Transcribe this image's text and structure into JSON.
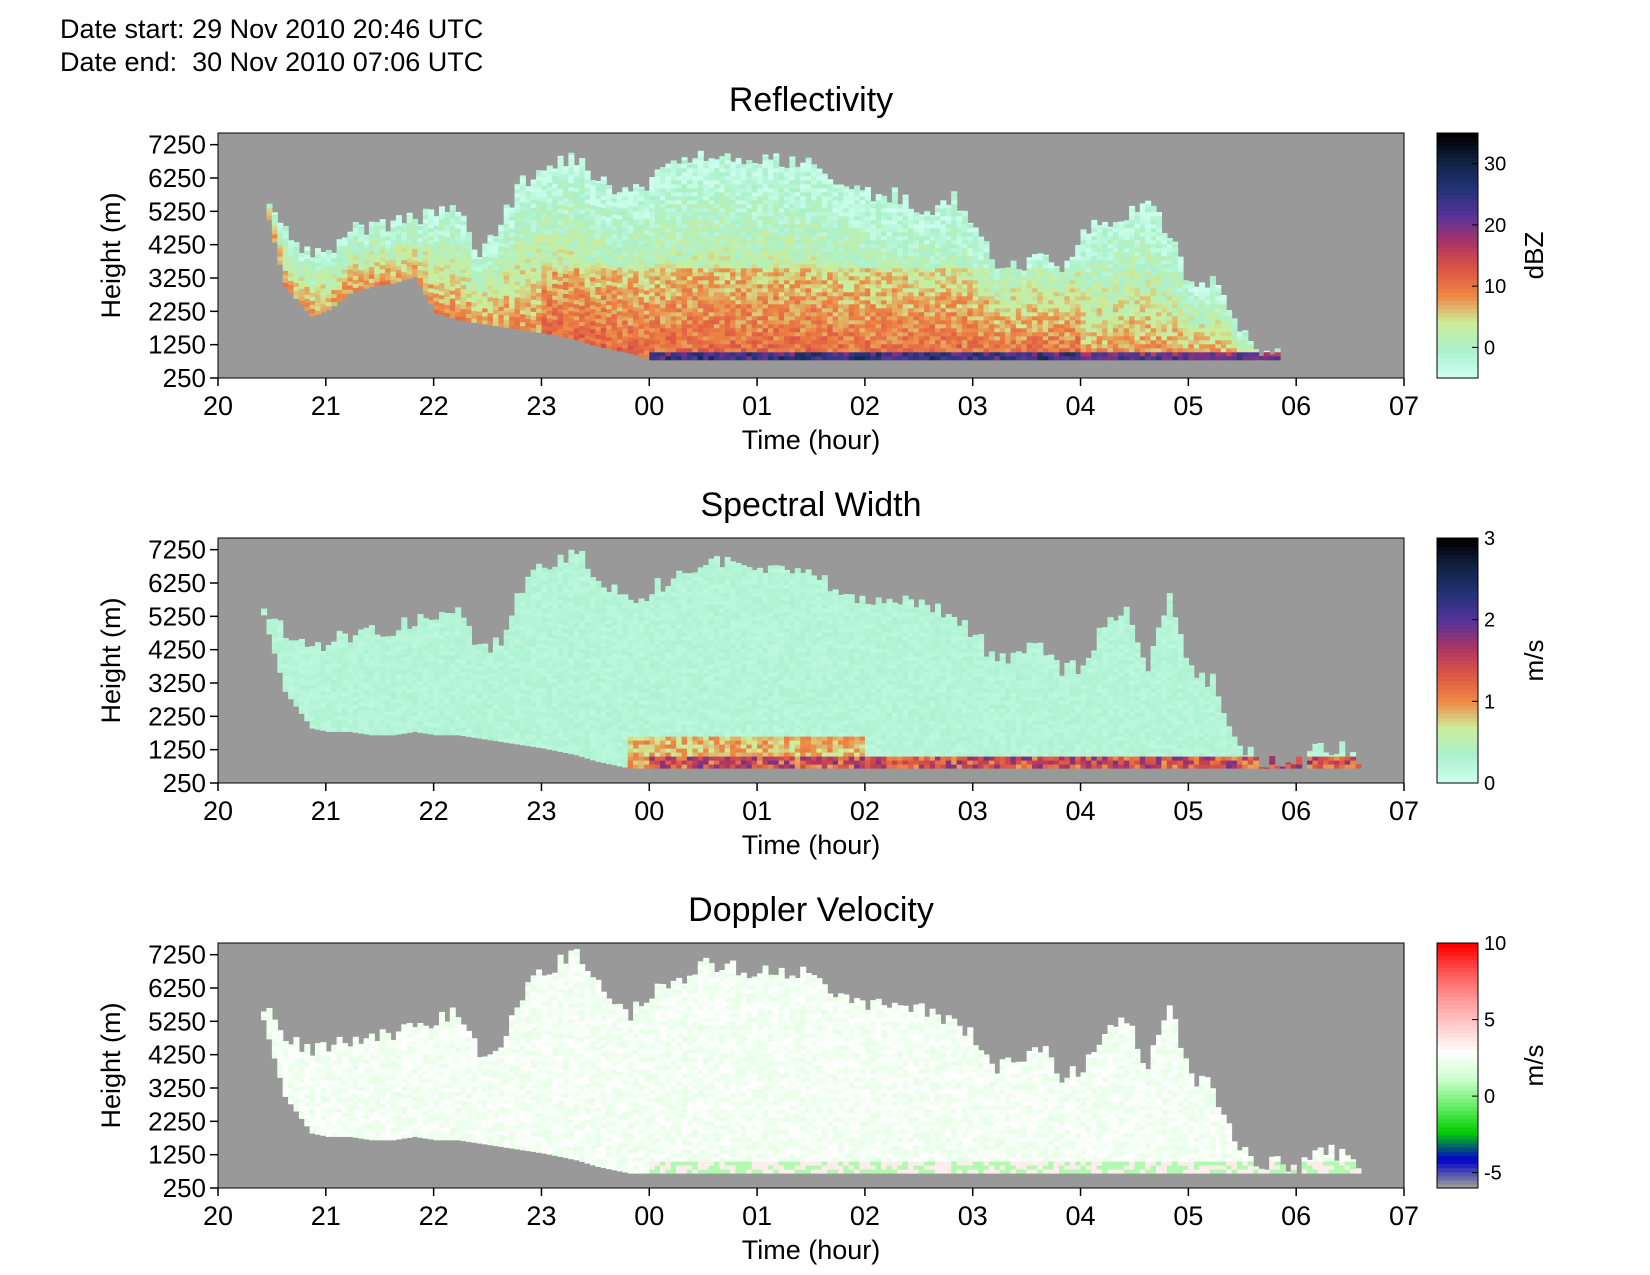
{
  "header": {
    "date_start": "Date start: 29 Nov 2010 20:46 UTC",
    "date_end": "Date end:  30 Nov 2010 07:06 UTC"
  },
  "colors": {
    "no_data": "#999999",
    "gray_background": "#999999"
  },
  "chart_data": [
    {
      "type": "heatmap",
      "title": "Reflectivity",
      "xlabel": "Time (hour)",
      "ylabel": "Height (m)",
      "x_ticks": [
        "20",
        "21",
        "22",
        "23",
        "00",
        "01",
        "02",
        "03",
        "04",
        "05",
        "06",
        "07"
      ],
      "y_ticks": [
        250,
        1250,
        2250,
        3250,
        4250,
        5250,
        6250,
        7250
      ],
      "xlim": [
        20,
        31
      ],
      "ylim": [
        250,
        7600
      ],
      "colorbar": {
        "label": "dBZ",
        "ticks": [
          0,
          10,
          20,
          30
        ],
        "range": [
          -5,
          35
        ],
        "colors": [
          "#ccffee",
          "#aaf0cc",
          "#ccee99",
          "#ee8844",
          "#dd5544",
          "#aa3366",
          "#553399",
          "#223377",
          "#112244",
          "#000000"
        ]
      },
      "cloud_extent": {
        "times": [
          20.45,
          20.6,
          20.85,
          21.0,
          21.2,
          21.4,
          21.6,
          21.8,
          22.0,
          22.2,
          22.4,
          22.6,
          22.8,
          23.0,
          23.3,
          23.5,
          23.8,
          24.0,
          24.3,
          24.5,
          24.8,
          25.0,
          25.3,
          25.5,
          25.7,
          26.0,
          26.3,
          26.6,
          26.8,
          27.0,
          27.2,
          27.4,
          27.6,
          27.8,
          28.0,
          28.2,
          28.4,
          28.6,
          28.8,
          29.0,
          29.2,
          29.4,
          29.6,
          29.8,
          30.0
        ],
        "top": [
          5400,
          4600,
          4000,
          3900,
          4700,
          4800,
          4900,
          5000,
          5200,
          5400,
          4000,
          5000,
          6100,
          6700,
          6800,
          6200,
          5800,
          6200,
          6900,
          6900,
          6700,
          6800,
          6800,
          6600,
          6000,
          5800,
          5700,
          5200,
          5600,
          4700,
          3700,
          3600,
          4000,
          3400,
          4700,
          4800,
          5100,
          5500,
          4500,
          3000,
          3200,
          2000,
          1000,
          900,
          700
        ],
        "base": [
          5000,
          3000,
          2100,
          2300,
          2800,
          3000,
          3100,
          3300,
          2200,
          2000,
          1900,
          1800,
          1700,
          1600,
          1400,
          1200,
          1000,
          800,
          800,
          800,
          800,
          800,
          800,
          800,
          800,
          800,
          800,
          800,
          800,
          800,
          800,
          800,
          800,
          800,
          800,
          800,
          800,
          800,
          800,
          800,
          800,
          800,
          800,
          800,
          700
        ]
      }
    },
    {
      "type": "heatmap",
      "title": "Spectral Width",
      "xlabel": "Time (hour)",
      "ylabel": "Height (m)",
      "x_ticks": [
        "20",
        "21",
        "22",
        "23",
        "00",
        "01",
        "02",
        "03",
        "04",
        "05",
        "06",
        "07"
      ],
      "y_ticks": [
        250,
        1250,
        2250,
        3250,
        4250,
        5250,
        6250,
        7250
      ],
      "xlim": [
        20,
        31
      ],
      "ylim": [
        250,
        7600
      ],
      "colorbar": {
        "label": "m/s",
        "ticks": [
          0,
          1,
          2,
          3
        ],
        "range": [
          0,
          3
        ],
        "colors": [
          "#ccffee",
          "#aaf0cc",
          "#ccee99",
          "#ee8844",
          "#dd5544",
          "#aa3366",
          "#553399",
          "#223377",
          "#112244",
          "#000000"
        ]
      },
      "cloud_extent": {
        "times": [
          20.4,
          20.6,
          20.85,
          21.0,
          21.2,
          21.4,
          21.6,
          21.8,
          22.0,
          22.2,
          22.4,
          22.6,
          22.8,
          23.0,
          23.3,
          23.5,
          23.8,
          24.0,
          24.3,
          24.5,
          24.8,
          25.0,
          25.3,
          25.5,
          25.7,
          26.0,
          26.3,
          26.6,
          26.8,
          27.0,
          27.2,
          27.4,
          27.6,
          27.8,
          28.0,
          28.2,
          28.4,
          28.6,
          28.8,
          29.0,
          29.2,
          29.4,
          29.6,
          29.8,
          30.0,
          30.2,
          30.4,
          30.6
        ],
        "top": [
          5600,
          4800,
          4300,
          4500,
          4700,
          4800,
          4900,
          5100,
          5300,
          5600,
          4300,
          4500,
          6100,
          6800,
          7200,
          6500,
          5500,
          6100,
          6500,
          7000,
          6800,
          6700,
          6700,
          6600,
          6000,
          5800,
          5700,
          5600,
          5200,
          4700,
          3800,
          4200,
          4500,
          3600,
          3800,
          5000,
          5400,
          3800,
          5800,
          3600,
          3300,
          1700,
          900,
          1000,
          800,
          1300,
          1300,
          900
        ],
        "base": [
          5300,
          3000,
          1900,
          1800,
          1800,
          1700,
          1700,
          1800,
          1700,
          1700,
          1600,
          1500,
          1400,
          1300,
          1100,
          900,
          700,
          700,
          700,
          700,
          700,
          700,
          700,
          700,
          700,
          700,
          700,
          700,
          700,
          700,
          700,
          700,
          700,
          700,
          700,
          700,
          700,
          700,
          700,
          700,
          700,
          700,
          700,
          700,
          700,
          700,
          700,
          700
        ]
      }
    },
    {
      "type": "heatmap",
      "title": "Doppler Velocity",
      "xlabel": "Time (hour)",
      "ylabel": "Height (m)",
      "x_ticks": [
        "20",
        "21",
        "22",
        "23",
        "00",
        "01",
        "02",
        "03",
        "04",
        "05",
        "06",
        "07"
      ],
      "y_ticks": [
        250,
        1250,
        2250,
        3250,
        4250,
        5250,
        6250,
        7250
      ],
      "xlim": [
        20,
        31
      ],
      "ylim": [
        250,
        7600
      ],
      "colorbar": {
        "label": "m/s",
        "ticks": [
          -5,
          0,
          5,
          10
        ],
        "range": [
          -6,
          10
        ],
        "colors": [
          "#999999",
          "#0000cc",
          "#00cc00",
          "#66ee66",
          "#ccffcc",
          "#ffffff",
          "#ffcccc",
          "#ff9999",
          "#ff5555",
          "#ff0000"
        ]
      },
      "cloud_extent": {
        "times": [
          20.4,
          20.6,
          20.85,
          21.0,
          21.2,
          21.4,
          21.6,
          21.8,
          22.0,
          22.2,
          22.4,
          22.6,
          22.8,
          23.0,
          23.3,
          23.5,
          23.8,
          24.0,
          24.3,
          24.5,
          24.8,
          25.0,
          25.3,
          25.5,
          25.7,
          26.0,
          26.3,
          26.6,
          26.8,
          27.0,
          27.2,
          27.4,
          27.6,
          27.8,
          28.0,
          28.2,
          28.4,
          28.6,
          28.8,
          29.0,
          29.2,
          29.4,
          29.6,
          29.8,
          30.0,
          30.2,
          30.4,
          30.6
        ],
        "top": [
          5600,
          4800,
          4300,
          4500,
          4700,
          4800,
          4900,
          5100,
          5300,
          5600,
          4300,
          4500,
          6100,
          6800,
          7200,
          6500,
          5500,
          6100,
          6500,
          7000,
          6800,
          6700,
          6700,
          6600,
          6000,
          5800,
          5700,
          5600,
          5200,
          4700,
          3800,
          4200,
          4500,
          3600,
          3800,
          5000,
          5400,
          3800,
          5800,
          3600,
          3300,
          1700,
          900,
          1000,
          800,
          1300,
          1300,
          900
        ],
        "base": [
          5300,
          3000,
          1900,
          1800,
          1800,
          1700,
          1700,
          1800,
          1700,
          1700,
          1600,
          1500,
          1400,
          1300,
          1100,
          900,
          700,
          700,
          700,
          700,
          700,
          700,
          700,
          700,
          700,
          700,
          700,
          700,
          700,
          700,
          700,
          700,
          700,
          700,
          700,
          700,
          700,
          700,
          700,
          700,
          700,
          700,
          700,
          700,
          700,
          700,
          700,
          700
        ]
      }
    }
  ]
}
